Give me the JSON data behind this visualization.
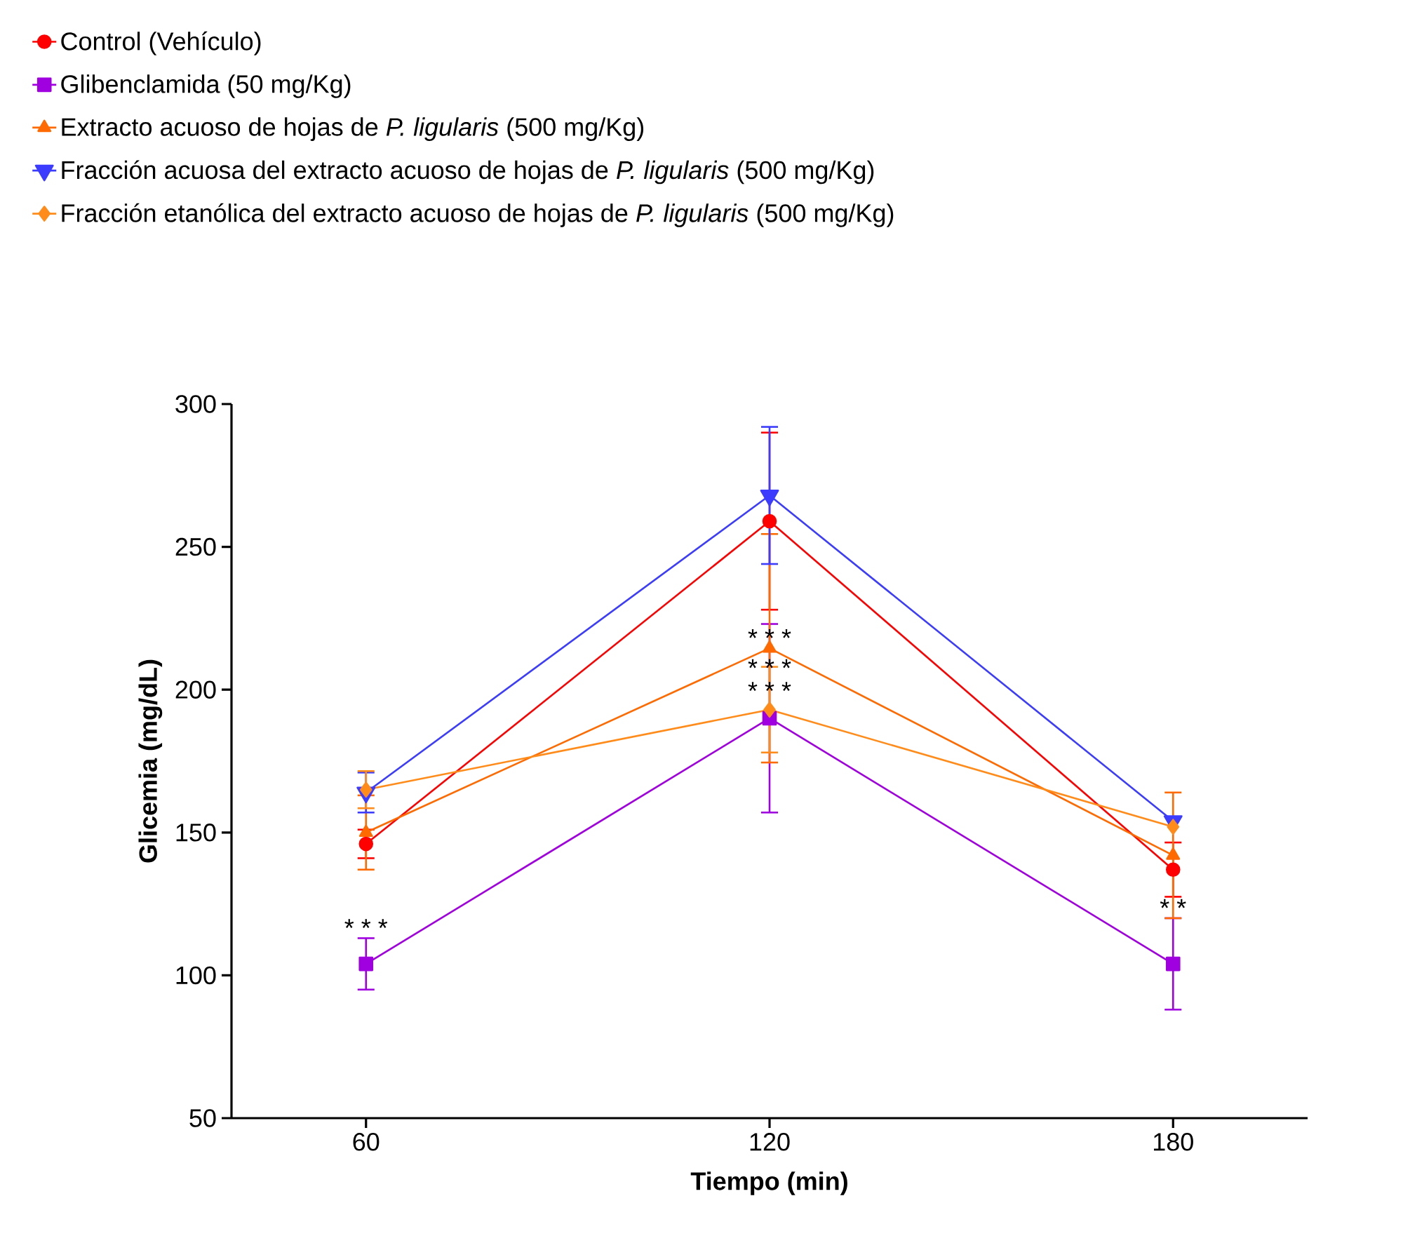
{
  "chart_data": {
    "type": "line",
    "xlabel": "Tiempo (min)",
    "ylabel": "Glicemia (mg/dL)",
    "x": [
      60,
      120,
      180
    ],
    "xlim": [
      40,
      200
    ],
    "xticks": [
      60,
      120,
      180
    ],
    "ylim": [
      50,
      300
    ],
    "yticks": [
      50,
      100,
      150,
      200,
      250,
      300
    ],
    "legend": "top",
    "grid": false,
    "series": [
      {
        "name": "Control (Vehículo)",
        "color": "#ff0000",
        "marker": "circle",
        "values": [
          146,
          259,
          137
        ],
        "errors": [
          5,
          31,
          9.5
        ]
      },
      {
        "name": "Glibenclamida (50 mg/Kg)",
        "color": "#a000e0",
        "marker": "square",
        "values": [
          104,
          190,
          104
        ],
        "errors": [
          9,
          33,
          16
        ]
      },
      {
        "name": "Extracto acuoso de hojas de *P. ligularis* (500 mg/Kg)",
        "color": "#ff6a00",
        "marker": "triangle",
        "values": [
          150,
          214.5,
          142
        ],
        "errors": [
          13,
          40,
          22
        ]
      },
      {
        "name": "Fracción acuosa del extracto acuoso de hojas de *P. ligularis* (500 mg/Kg)",
        "color": "#3c3cff",
        "marker": "triangle-down",
        "values": [
          164,
          268,
          154
        ],
        "errors": [
          7,
          24,
          null
        ]
      },
      {
        "name": "Fracción etanólica del extracto acuoso de hojas de *P. ligularis* (500 mg/Kg)",
        "color": "#ff8c1a",
        "marker": "diamond",
        "values": [
          165,
          193,
          152
        ],
        "errors": [
          6.5,
          15,
          null
        ]
      }
    ],
    "annotations": [
      {
        "text": "* * *",
        "x": 60,
        "y": 113
      },
      {
        "text": "* * *",
        "x": 120,
        "y": 214.5
      },
      {
        "text": "* * *",
        "x": 120,
        "y": 204
      },
      {
        "text": "* * *",
        "x": 120,
        "y": 196
      },
      {
        "text": "* *",
        "x": 180,
        "y": 120
      }
    ]
  }
}
